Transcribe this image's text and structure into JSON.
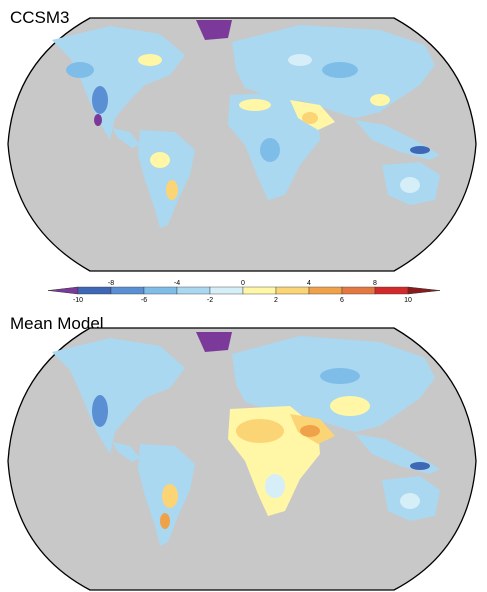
{
  "panels": [
    {
      "title": "CCSM3"
    },
    {
      "title": "Mean Model"
    }
  ],
  "colorbar": {
    "upper_ticks": [
      "-8",
      "-4",
      "0",
      "4",
      "8"
    ],
    "lower_ticks": [
      "-10",
      "-6",
      "-2",
      "2",
      "6",
      "10"
    ],
    "levels": [
      -10,
      -8,
      -6,
      -4,
      -2,
      0,
      2,
      4,
      6,
      8,
      10
    ],
    "colors": [
      "#7b3a9a",
      "#3e67b5",
      "#5b8fd3",
      "#7fbde9",
      "#aad8f0",
      "#d5eef8",
      "#fff6a6",
      "#fbd575",
      "#f0a24a",
      "#e37840",
      "#d22a2a",
      "#8c1a1a"
    ]
  },
  "colors": {
    "ocean": "#c8c8c8",
    "land_base": "#aad8f0",
    "outline": "#000000"
  }
}
